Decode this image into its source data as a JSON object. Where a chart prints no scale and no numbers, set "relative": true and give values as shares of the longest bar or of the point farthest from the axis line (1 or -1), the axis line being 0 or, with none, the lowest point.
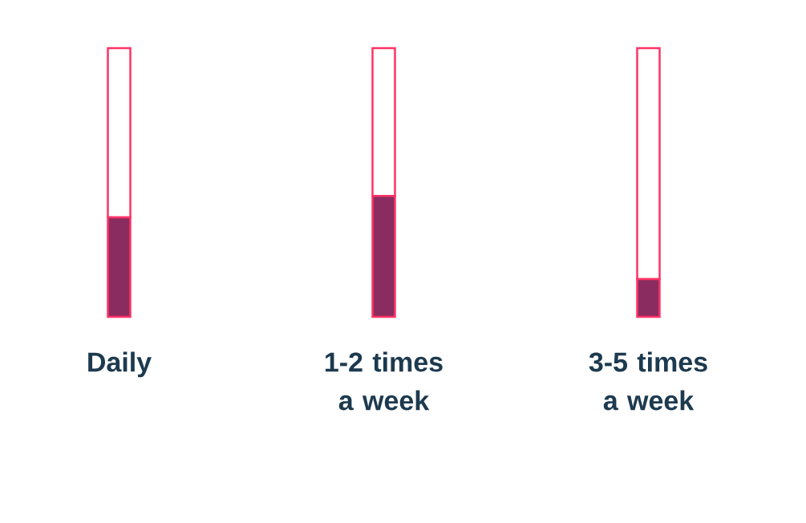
{
  "chart_data": {
    "type": "bar",
    "relative": true,
    "stacked": true,
    "categories": [
      "Daily",
      "1-2 times a week",
      "3-5 times a week"
    ],
    "series": [
      {
        "color": "#8a2c5f",
        "values": [
          0.37,
          0.45,
          0.14
        ]
      },
      {
        "color": "#ffffff",
        "values": [
          0.63,
          0.55,
          0.86
        ]
      }
    ]
  }
}
